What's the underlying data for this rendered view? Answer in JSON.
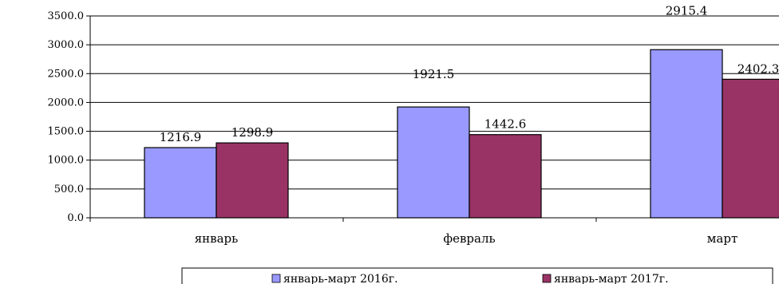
{
  "chart_data": {
    "type": "bar",
    "categories": [
      "январь",
      "февраль",
      "март"
    ],
    "series": [
      {
        "name": "январь-март 2016г.",
        "values": [
          1216.9,
          1921.5,
          2915.4
        ],
        "color": "#9999ff"
      },
      {
        "name": "январь-март 2017г.",
        "values": [
          1298.9,
          1442.6,
          2402.3
        ],
        "color": "#993366"
      }
    ],
    "data_labels": [
      [
        "1216.9",
        "1921.5",
        "2915.4"
      ],
      [
        "1298.9",
        "1442.6",
        "2402.3"
      ]
    ],
    "ylim": [
      0,
      3500
    ],
    "yticks": [
      "0.0",
      "500.0",
      "1000.0",
      "1500.0",
      "2000.0",
      "2500.0",
      "3000.0",
      "3500.0"
    ],
    "ytick_values": [
      0,
      500,
      1000,
      1500,
      2000,
      2500,
      3000,
      3500
    ],
    "grid": true,
    "legend_position": "bottom",
    "title": "",
    "xlabel": "",
    "ylabel": ""
  }
}
